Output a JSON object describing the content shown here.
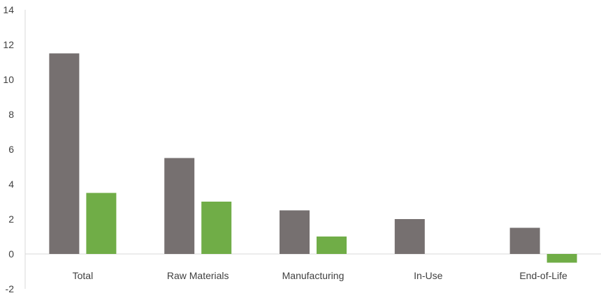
{
  "chart_data": {
    "type": "bar",
    "title": "",
    "xlabel": "",
    "ylabel": "",
    "ylim": [
      -2,
      14
    ],
    "yticks": [
      -2,
      0,
      2,
      4,
      6,
      8,
      10,
      12,
      14
    ],
    "grid": false,
    "legend": "none",
    "categories": [
      "Total",
      "Raw Materials",
      "Manufacturing",
      "In-Use",
      "End-of-Life"
    ],
    "series": [
      {
        "values": [
          11.5,
          5.5,
          2.5,
          2.0,
          1.5
        ],
        "color": "#767070"
      },
      {
        "values": [
          3.5,
          3.0,
          1.0,
          0,
          -0.5
        ],
        "color": "#70AD47"
      }
    ],
    "axis_color": "#D9D9D9"
  }
}
